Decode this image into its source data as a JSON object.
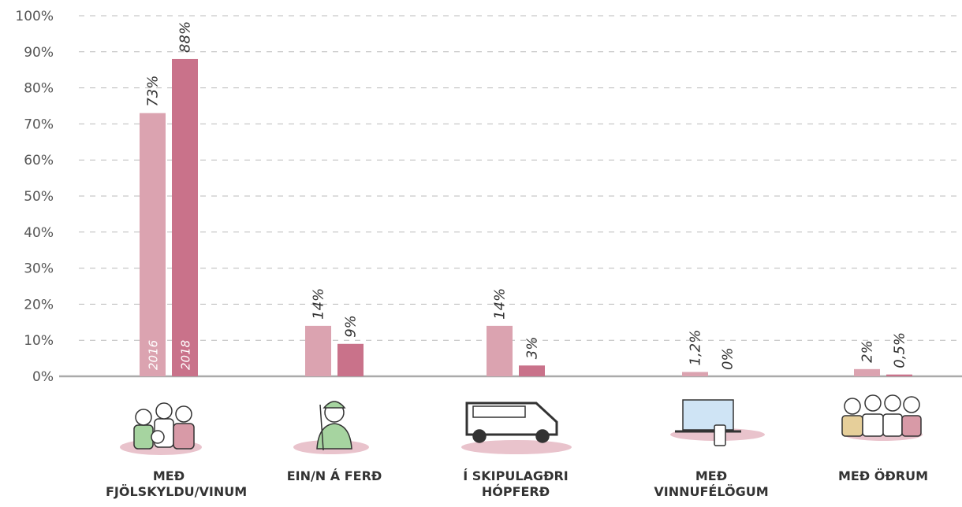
{
  "chart_data": {
    "type": "bar",
    "categories": [
      "MEÐ FJÖLSKYLDU/VINUM",
      "EIN/N Á FERÐ",
      "Í SKIPULAGÐRI HÓPFERÐ",
      "MEÐ VINNUFÉLÖGUM",
      "MEÐ ÖÐRUM"
    ],
    "series": [
      {
        "name": "2016",
        "color": "#dba3b0",
        "values": [
          73,
          14,
          14,
          1.2,
          2
        ],
        "value_labels": [
          "73%",
          "14%",
          "14%",
          "1,2%",
          "2%"
        ]
      },
      {
        "name": "2018",
        "color": "#c9728a",
        "values": [
          88,
          9,
          3,
          0,
          0.5
        ],
        "value_labels": [
          "88%",
          "9%",
          "3%",
          "0%",
          "0,5%"
        ]
      }
    ],
    "ylim": [
      0,
      100
    ],
    "yticks": [
      {
        "value": 0,
        "label": "0%"
      },
      {
        "value": 10,
        "label": "10%"
      },
      {
        "value": 20,
        "label": "20%"
      },
      {
        "value": 30,
        "label": "30%"
      },
      {
        "value": 40,
        "label": "40%"
      },
      {
        "value": 50,
        "label": "50%"
      },
      {
        "value": 60,
        "label": "60%"
      },
      {
        "value": 70,
        "label": "70%"
      },
      {
        "value": 80,
        "label": "80%"
      },
      {
        "value": 90,
        "label": "90%"
      },
      {
        "value": 100,
        "label": "100%"
      }
    ],
    "grid": true
  }
}
